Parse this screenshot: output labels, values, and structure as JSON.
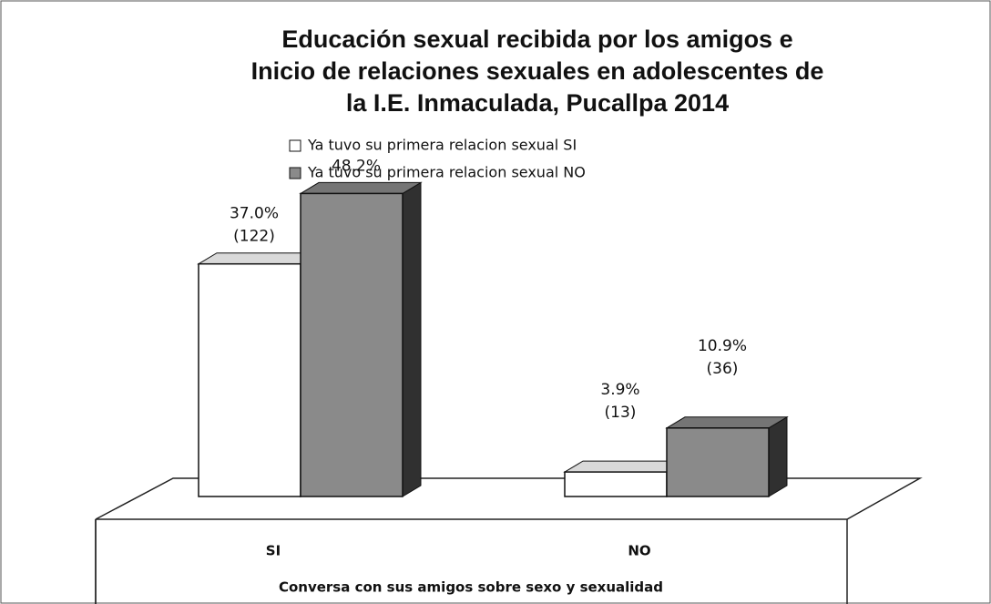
{
  "chart_data": {
    "type": "bar",
    "title": [
      "Educación sexual recibida por los amigos e",
      "Inicio de relaciones sexuales en adolescentes de",
      "la I.E. Inmaculada, Pucallpa 2014"
    ],
    "categories": [
      "SI",
      "NO"
    ],
    "x_label": "Conversa con sus amigos sobre sexo y sexualidad",
    "series": [
      {
        "name": "Ya tuvo su primera relacion sexual SI",
        "color": "#ffffff",
        "values": [
          37.0,
          3.9
        ],
        "value_labels": [
          "37.0%",
          "3.9%"
        ],
        "count_labels": [
          "(122)",
          "(13)"
        ]
      },
      {
        "name": "Ya tuvo su primera relacion sexual NO",
        "color": "#8a8a8a",
        "values": [
          48.2,
          10.9
        ],
        "value_labels": [
          "48.2%",
          "10.9%"
        ],
        "count_labels": [
          null,
          "(36)"
        ]
      }
    ],
    "ylim": [
      0,
      50
    ]
  }
}
